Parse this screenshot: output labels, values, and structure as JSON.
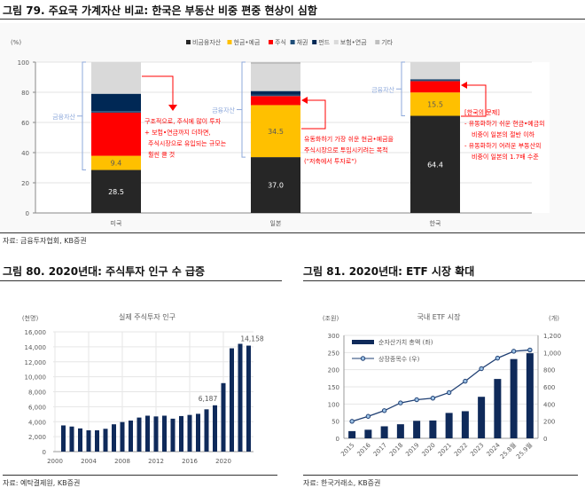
{
  "fig79": {
    "title": "그림 79. 주요국 가계자산 비교: 한국은 부동산 비중 편중 현상이 심함",
    "source": "자료: 금융투자협회, KB증권",
    "bracket_label": "금융자산",
    "annotations": {
      "us": [
        "구조적으로, 주식에 많이 투자",
        "+ 보험•연금까지 더하면,",
        "주식시장으로 유입되는 규모는",
        "훨씬 클 것"
      ],
      "japan": [
        "유동화하기 가장 쉬운 현금•예금을",
        "주식시장으로 투입시키려는 목적",
        "(\"저축에서 투자로\")"
      ],
      "korea": [
        "[한국의 문제]",
        "- 유동화하기 쉬운 현금•예금의",
        "비중이 일본의 절반 이하",
        "- 유동화하기 어려운 부동산의",
        "비중이 일본의 1.7배 수준"
      ]
    },
    "annotation_color": "#ff0000"
  },
  "fig80": {
    "title": "그림 80. 2020년대: 주식투자 인구 수 급증",
    "source": "자료: 예탁결제원, KB증권"
  },
  "fig81": {
    "title": "그림 81. 2020년대: ETF 시장 확대",
    "source": "자료: 한국거래소, KB증권"
  },
  "chart_data": [
    {
      "type": "bar",
      "stacked": true,
      "ylabel": "(%)",
      "ylim": [
        0,
        100
      ],
      "yticks": [
        0,
        20,
        40,
        60,
        80,
        100
      ],
      "categories": [
        "미국",
        "일본",
        "한국"
      ],
      "series": [
        {
          "name": "비금융자산",
          "color": "#262626",
          "values": [
            28.5,
            37.0,
            64.4
          ],
          "labels": [
            "28.5",
            "37.0",
            "64.4"
          ]
        },
        {
          "name": "현금•예금",
          "color": "#ffc000",
          "values": [
            9.4,
            34.5,
            15.5
          ],
          "labels": [
            "9.4",
            "34.5",
            "15.5"
          ]
        },
        {
          "name": "주식",
          "color": "#ff0000",
          "values": [
            28.6,
            6.0,
            7.5
          ]
        },
        {
          "name": "채권",
          "color": "#1f4e79",
          "values": [
            1.0,
            0.8,
            0.6
          ]
        },
        {
          "name": "펀드",
          "color": "#002855",
          "values": [
            11.5,
            2.5,
            0.6
          ]
        },
        {
          "name": "보험•연금",
          "color": "#d9d9d9",
          "values": [
            21.0,
            18.0,
            11.4
          ]
        },
        {
          "name": "기타",
          "color": "#bfbfbf",
          "values": [
            0.0,
            1.2,
            0.0
          ]
        }
      ],
      "grid": true,
      "legend": "top"
    },
    {
      "type": "bar",
      "title": "실제 주식투자 인구",
      "ylabel": "(천명)",
      "ylim": [
        0,
        16000
      ],
      "yticks": [
        "0",
        "2,000",
        "4,000",
        "6,000",
        "8,000",
        "10,000",
        "12,000",
        "14,000",
        "16,000"
      ],
      "xticks": [
        "2000",
        "2004",
        "2008",
        "2012",
        "2016",
        "2020"
      ],
      "x": [
        2001,
        2002,
        2003,
        2004,
        2005,
        2006,
        2007,
        2008,
        2009,
        2010,
        2011,
        2012,
        2013,
        2014,
        2015,
        2016,
        2017,
        2018,
        2019,
        2020,
        2021,
        2022,
        2023
      ],
      "values": [
        3500,
        3350,
        3100,
        2850,
        2850,
        3050,
        3650,
        3950,
        4150,
        4550,
        4800,
        4700,
        4800,
        4400,
        4750,
        4900,
        5050,
        5650,
        6187,
        9150,
        13800,
        14400,
        14158
      ],
      "data_labels": {
        "2019": "6,187",
        "2023": "14,158"
      },
      "color": "#0f2a5a",
      "grid": true
    },
    {
      "type": "bar+line",
      "title": "국내 ETF 시장",
      "ylabel_left": "(조원)",
      "ylabel_right": "(개)",
      "ylim_left": [
        0,
        300
      ],
      "ylim_right": [
        0,
        1200
      ],
      "yticks_left": [
        "0",
        "50",
        "100",
        "150",
        "200",
        "250",
        "300"
      ],
      "yticks_right": [
        "0",
        "200",
        "400",
        "600",
        "800",
        "1,000",
        "1,200"
      ],
      "categories": [
        "2015",
        "2016",
        "2017",
        "2018",
        "2019",
        "2020",
        "2021",
        "2022",
        "2023",
        "2024",
        "25.8월",
        "25.9월"
      ],
      "series": [
        {
          "name": "순자산가치 총액 (좌)",
          "type": "bar",
          "axis": "left",
          "color": "#0f2a5a",
          "values": [
            21,
            25,
            35,
            41,
            51,
            52,
            74,
            79,
            121,
            173,
            231,
            248
          ]
        },
        {
          "name": "상장종목수 (우)",
          "type": "line",
          "axis": "right",
          "color": "#1f3f73",
          "values": [
            198,
            256,
            323,
            413,
            450,
            468,
            533,
            666,
            812,
            935,
            1015,
            1030
          ]
        }
      ],
      "legend": "top-left",
      "grid": true
    }
  ]
}
